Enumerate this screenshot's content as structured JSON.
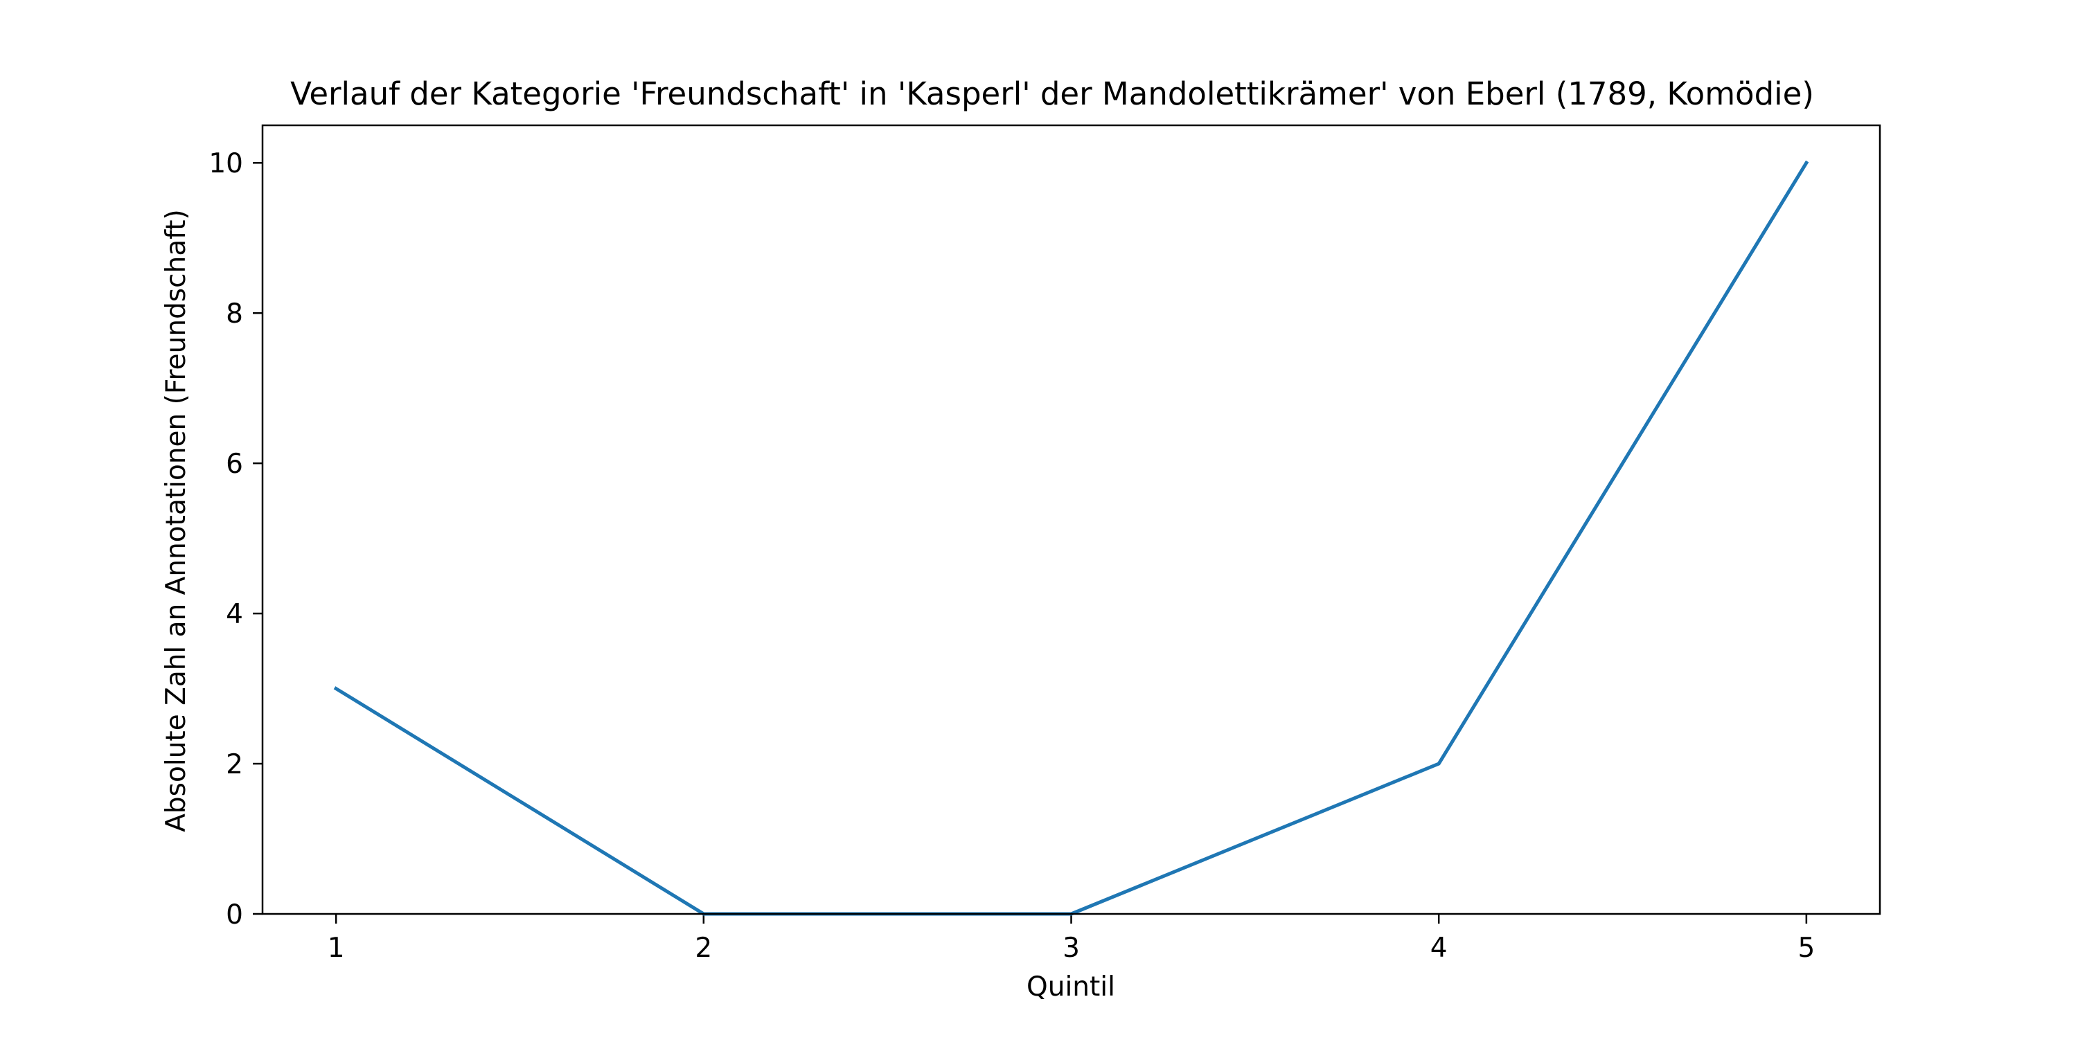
{
  "chart_data": {
    "type": "line",
    "title": "Verlauf der Kategorie 'Freundschaft' in 'Kasperl' der Mandolettikrämer' von Eberl (1789, Komödie)",
    "xlabel": "Quintil",
    "ylabel": "Absolute Zahl an Annotationen (Freundschaft)",
    "x": [
      1,
      2,
      3,
      4,
      5
    ],
    "xticks": [
      1,
      2,
      3,
      4,
      5
    ],
    "yticks": [
      0,
      2,
      4,
      6,
      8,
      10
    ],
    "xlim": [
      0.8,
      5.2
    ],
    "ylim": [
      0,
      10.5
    ],
    "grid": false,
    "series": [
      {
        "values": [
          3,
          0,
          0,
          2,
          10
        ],
        "color": "#1f77b4"
      }
    ]
  }
}
